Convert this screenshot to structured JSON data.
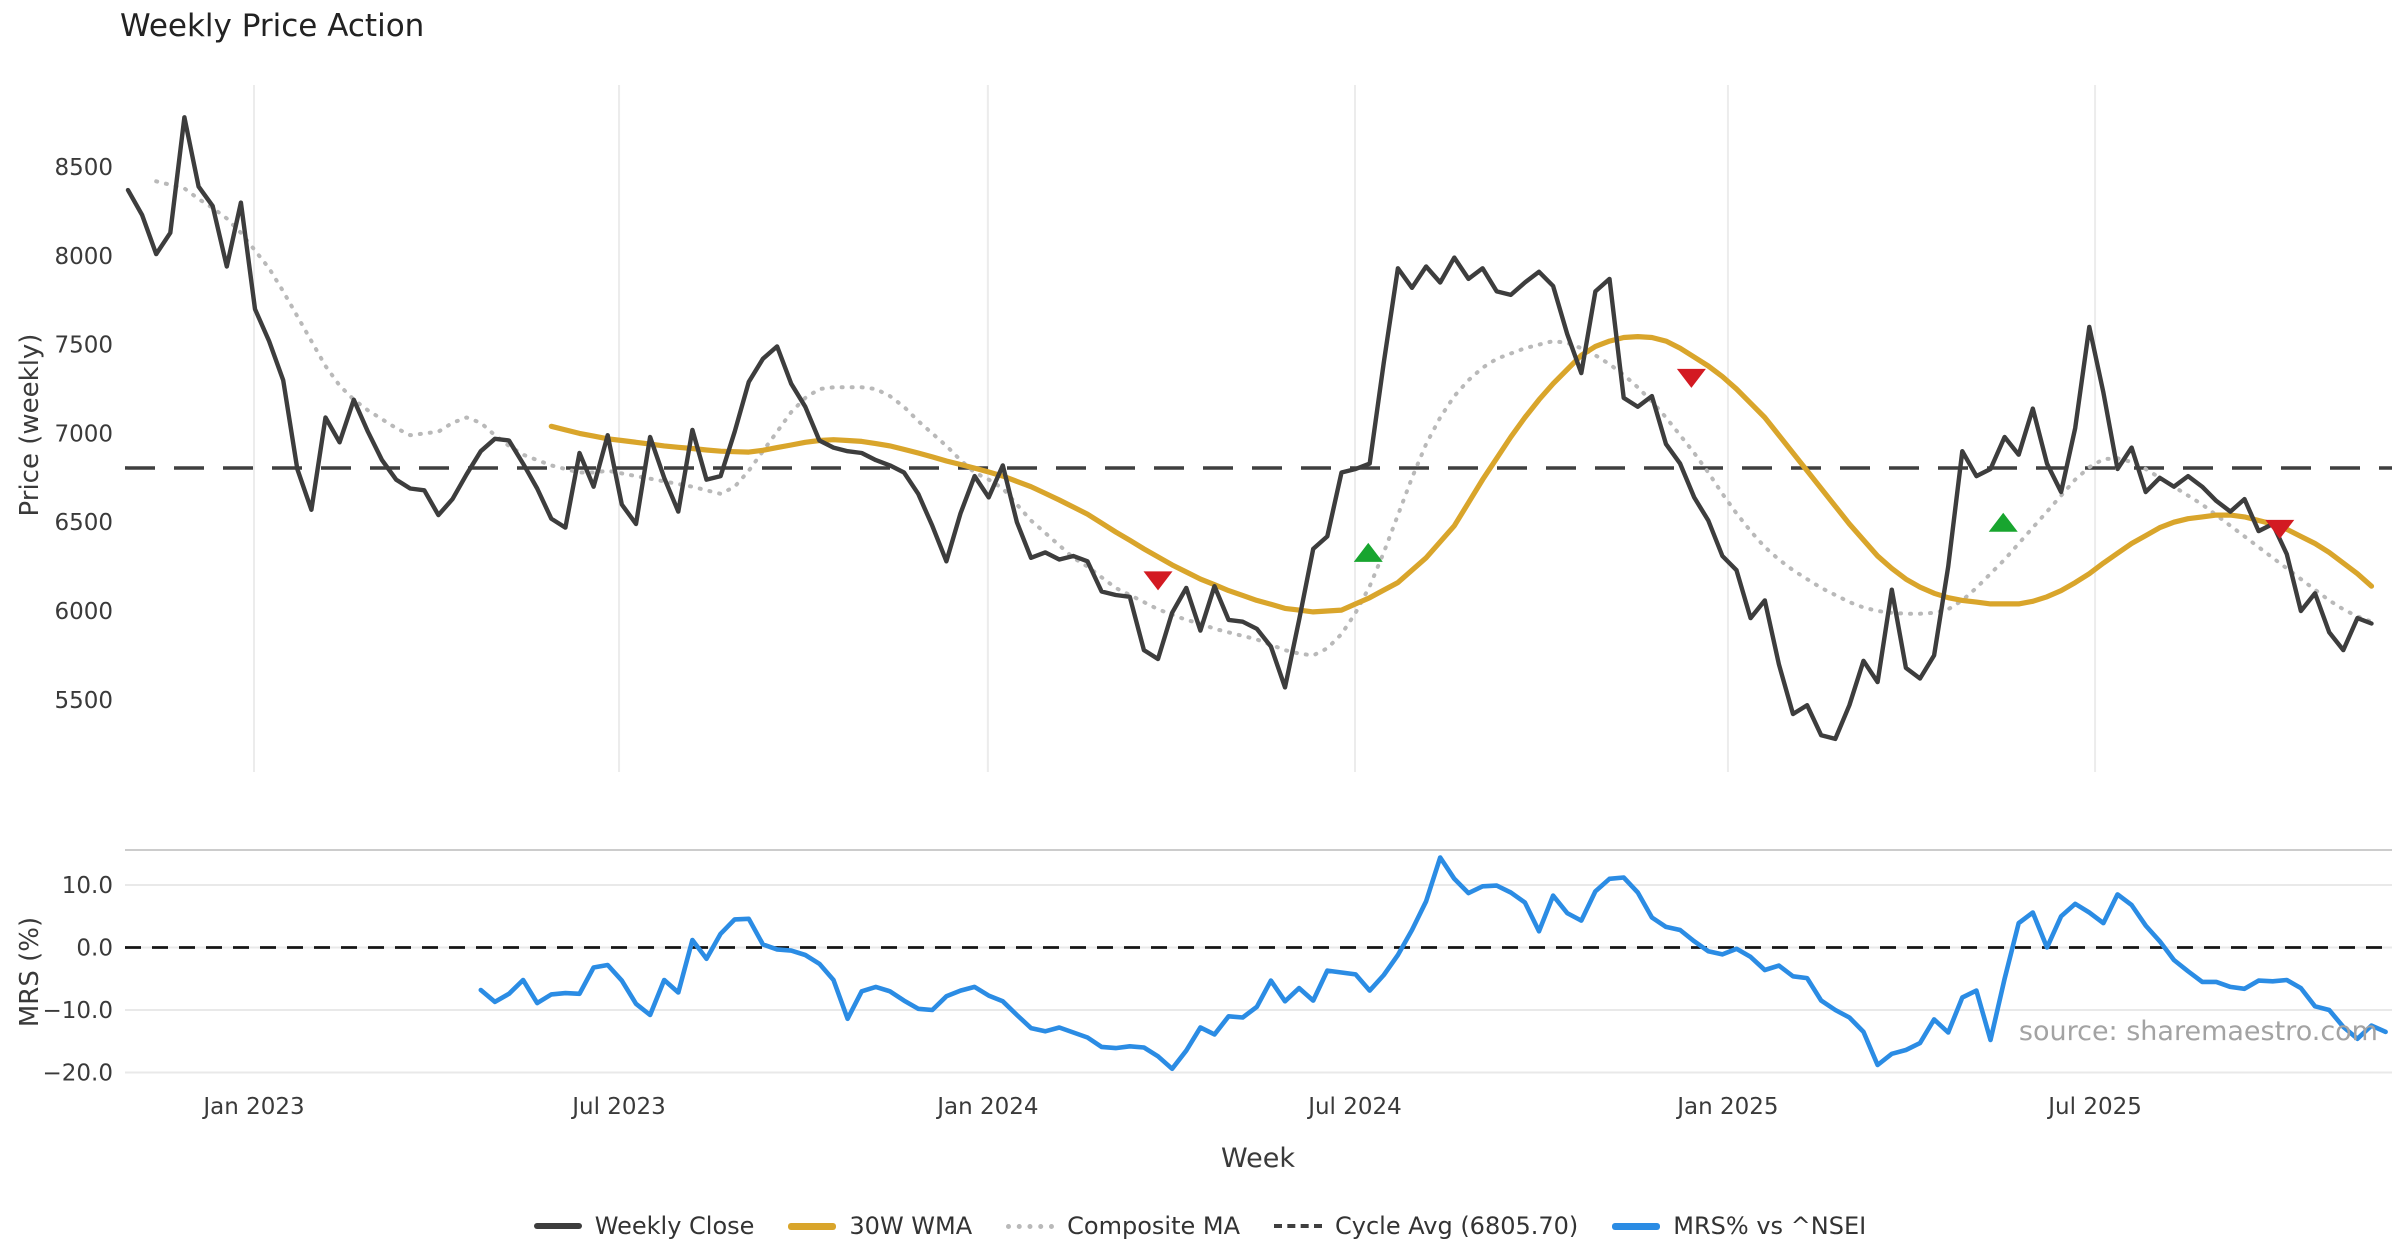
{
  "title": "Weekly Price Action",
  "source": "source: sharemaestro.com",
  "x_axis": {
    "label": "Week"
  },
  "top_axis": {
    "label": "Price (weekly)"
  },
  "bottom_axis": {
    "label": "MRS (%)"
  },
  "legend": {
    "items": [
      {
        "label": "Weekly Close",
        "swatch": "solid-dark-line"
      },
      {
        "label": "30W WMA",
        "swatch": "solid-gold-line"
      },
      {
        "label": "Composite MA",
        "swatch": "dotted-gray-line"
      },
      {
        "label": "Cycle Avg (6805.70)",
        "swatch": "dashed-dark-line"
      },
      {
        "label": "MRS% vs ^NSEI",
        "swatch": "solid-blue-line"
      }
    ]
  },
  "chart_data": {
    "type": "line",
    "title": "Weekly Price Action",
    "xlabel": "Week",
    "x_unit": "week_index_from_2022-11",
    "grid": "vertical-top-panel, horizontal-bottom-panel",
    "legend_position": "lower center",
    "x_ticks": [
      {
        "label": "Jan 2023",
        "week": 8.93
      },
      {
        "label": "Jul 2023",
        "week": 34.8
      },
      {
        "label": "Jan 2024",
        "week": 60.94
      },
      {
        "label": "Jul 2024",
        "week": 86.96
      },
      {
        "label": "Jan 2025",
        "week": 113.39
      },
      {
        "label": "Jul 2025",
        "week": 139.41
      }
    ],
    "colors": {
      "weekly_close": "#3d3d3d",
      "wma30": "#d9a52b",
      "composite": "#b9b9b9",
      "cycle_avg": "#3f3f3f",
      "mrs": "#2b8ce4",
      "buy": "#18a52f",
      "sell": "#d31a22",
      "grid": "#ececec",
      "spine": "#cccccc"
    },
    "top_panel": {
      "ylabel": "Price (weekly)",
      "ylim": [
        5133,
        8962
      ],
      "yticks": [
        8500,
        8000,
        7500,
        7000,
        6500,
        6000,
        5500
      ],
      "cycle_avg": 6805.7,
      "series": [
        {
          "name": "Weekly Close",
          "style": "solid",
          "start_week": 0,
          "values": [
            8370,
            8230,
            8010,
            8130,
            8780,
            8390,
            8280,
            7940,
            8300,
            7700,
            7520,
            7300,
            6800,
            6570,
            7090,
            6950,
            7190,
            7010,
            6850,
            6740,
            6690,
            6680,
            6540,
            6630,
            6770,
            6900,
            6970,
            6960,
            6830,
            6690,
            6520,
            6470,
            6890,
            6700,
            6990,
            6600,
            6490,
            6980,
            6750,
            6560,
            7020,
            6740,
            6760,
            7010,
            7290,
            7420,
            7490,
            7280,
            7150,
            6960,
            6920,
            6900,
            6890,
            6850,
            6820,
            6780,
            6660,
            6480,
            6280,
            6550,
            6760,
            6640,
            6820,
            6500,
            6300,
            6330,
            6290,
            6310,
            6280,
            6110,
            6090,
            6080,
            5780,
            5730,
            5990,
            6130,
            5890,
            6140,
            5950,
            5940,
            5900,
            5800,
            5570,
            5950,
            6350,
            6420,
            6780,
            6800,
            6830,
            7400,
            7930,
            7820,
            7940,
            7850,
            7990,
            7870,
            7930,
            7800,
            7780,
            7850,
            7910,
            7830,
            7560,
            7340,
            7800,
            7870,
            7200,
            7150,
            7210,
            6940,
            6830,
            6640,
            6510,
            6310,
            6230,
            5960,
            6060,
            5700,
            5420,
            5470,
            5300,
            5280,
            5470,
            5720,
            5600,
            6120,
            5680,
            5620,
            5750,
            6250,
            6900,
            6760,
            6800,
            6980,
            6880,
            7140,
            6830,
            6670,
            7030,
            7600,
            7230,
            6800,
            6920,
            6670,
            6750,
            6700,
            6760,
            6700,
            6620,
            6560,
            6630,
            6450,
            6490,
            6320,
            6000,
            6100,
            5880,
            5780,
            5960,
            5930
          ]
        },
        {
          "name": "30W WMA",
          "style": "solid",
          "start_week": 30,
          "values": [
            7040,
            7020,
            7000,
            6985,
            6970,
            6960,
            6950,
            6940,
            6930,
            6922,
            6915,
            6907,
            6900,
            6897,
            6895,
            6905,
            6920,
            6935,
            6950,
            6960,
            6965,
            6960,
            6955,
            6943,
            6930,
            6910,
            6890,
            6868,
            6845,
            6825,
            6805,
            6783,
            6760,
            6730,
            6700,
            6663,
            6625,
            6585,
            6545,
            6495,
            6445,
            6398,
            6350,
            6305,
            6260,
            6220,
            6180,
            6148,
            6115,
            6088,
            6060,
            6038,
            6015,
            6005,
            5995,
            6000,
            6005,
            6040,
            6075,
            6118,
            6160,
            6230,
            6300,
            6390,
            6480,
            6610,
            6740,
            6860,
            6980,
            7090,
            7190,
            7280,
            7360,
            7440,
            7490,
            7520,
            7540,
            7545,
            7540,
            7520,
            7480,
            7430,
            7380,
            7320,
            7250,
            7170,
            7090,
            6990,
            6890,
            6790,
            6690,
            6590,
            6490,
            6400,
            6310,
            6240,
            6180,
            6135,
            6100,
            6075,
            6060,
            6050,
            6040,
            6040,
            6040,
            6055,
            6080,
            6115,
            6160,
            6210,
            6270,
            6325,
            6380,
            6425,
            6470,
            6500,
            6520,
            6530,
            6540,
            6540,
            6530,
            6510,
            6490,
            6460,
            6420,
            6380,
            6330,
            6270,
            6210,
            6140
          ]
        },
        {
          "name": "Composite MA",
          "style": "dotted",
          "start_week": 2,
          "values": [
            8420,
            8400,
            8380,
            8320,
            8270,
            8210,
            8130,
            8030,
            7930,
            7800,
            7660,
            7520,
            7380,
            7270,
            7190,
            7130,
            7080,
            7030,
            6990,
            7000,
            7010,
            7060,
            7090,
            7060,
            6990,
            6930,
            6880,
            6850,
            6820,
            6800,
            6780,
            6780,
            6790,
            6775,
            6760,
            6745,
            6730,
            6715,
            6700,
            6680,
            6660,
            6700,
            6790,
            6900,
            7010,
            7120,
            7200,
            7250,
            7260,
            7260,
            7260,
            7250,
            7210,
            7150,
            7070,
            7000,
            6930,
            6850,
            6780,
            6740,
            6690,
            6600,
            6510,
            6440,
            6370,
            6300,
            6250,
            6190,
            6130,
            6090,
            6050,
            6010,
            5980,
            5950,
            5930,
            5900,
            5880,
            5860,
            5840,
            5810,
            5780,
            5760,
            5750,
            5790,
            5870,
            5990,
            6140,
            6330,
            6540,
            6750,
            6940,
            7090,
            7210,
            7300,
            7370,
            7420,
            7450,
            7480,
            7500,
            7520,
            7510,
            7480,
            7440,
            7390,
            7330,
            7260,
            7180,
            7090,
            6990,
            6890,
            6780,
            6660,
            6550,
            6450,
            6360,
            6290,
            6230,
            6180,
            6130,
            6090,
            6050,
            6020,
            6000,
            5990,
            5985,
            5985,
            5990,
            6010,
            6060,
            6130,
            6210,
            6290,
            6380,
            6470,
            6560,
            6650,
            6740,
            6810,
            6855,
            6860,
            6840,
            6800,
            6750,
            6700,
            6650,
            6600,
            6540,
            6480,
            6420,
            6360,
            6300,
            6240,
            6180,
            6120,
            6060,
            6010,
            5970,
            5940
          ]
        }
      ],
      "buy_markers": [
        {
          "week": 87.9,
          "value": 6330
        },
        {
          "week": 132.9,
          "value": 6500
        }
      ],
      "sell_markers": [
        {
          "week": 73.0,
          "value": 6170
        },
        {
          "week": 110.8,
          "value": 7310
        },
        {
          "week": 152.5,
          "value": 6460
        }
      ]
    },
    "bottom_panel": {
      "ylabel": "MRS (%)",
      "ylim": [
        -22.8,
        15.6
      ],
      "yticks": [
        {
          "label": "10.0",
          "value": 10
        },
        {
          "label": "0.0",
          "value": 0
        },
        {
          "label": "−10.0",
          "value": -10
        },
        {
          "label": "−20.0",
          "value": -20
        }
      ],
      "zero_line": 0,
      "series": [
        {
          "name": "MRS% vs ^NSEI",
          "style": "solid",
          "start_week": 25,
          "values": [
            -6.8,
            -8.7,
            -7.4,
            -5.2,
            -8.9,
            -7.5,
            -7.3,
            -7.4,
            -3.2,
            -2.8,
            -5.3,
            -9.0,
            -10.8,
            -5.2,
            -7.2,
            1.2,
            -1.8,
            2.2,
            4.5,
            4.6,
            0.5,
            -0.3,
            -0.5,
            -1.2,
            -2.6,
            -5.2,
            -11.4,
            -7.0,
            -6.3,
            -7.0,
            -8.5,
            -9.8,
            -10.0,
            -7.8,
            -6.9,
            -6.3,
            -7.7,
            -8.6,
            -10.8,
            -12.9,
            -13.4,
            -12.8,
            -13.6,
            -14.4,
            -15.9,
            -16.1,
            -15.8,
            -16.0,
            -17.4,
            -19.4,
            -16.5,
            -12.8,
            -13.9,
            -11.0,
            -11.2,
            -9.5,
            -5.3,
            -8.6,
            -6.5,
            -8.5,
            -3.7,
            -4.0,
            -4.3,
            -6.9,
            -4.4,
            -1.2,
            2.8,
            7.4,
            14.4,
            11.0,
            8.7,
            9.8,
            9.9,
            8.8,
            7.2,
            2.6,
            8.3,
            5.5,
            4.3,
            9.0,
            11.0,
            11.2,
            8.8,
            4.8,
            3.3,
            2.8,
            1.0,
            -0.6,
            -1.1,
            -0.2,
            -1.5,
            -3.6,
            -2.9,
            -4.6,
            -4.9,
            -8.5,
            -10.0,
            -11.2,
            -13.5,
            -18.8,
            -17.0,
            -16.4,
            -15.3,
            -11.5,
            -13.6,
            -8.0,
            -6.9,
            -14.8,
            -5.0,
            3.9,
            5.6,
            0.0,
            5.0,
            7.0,
            5.6,
            3.9,
            8.5,
            6.8,
            3.5,
            1.0,
            -2.0,
            -3.8,
            -5.5,
            -5.5,
            -6.3,
            -6.6,
            -5.3,
            -5.4,
            -5.2,
            -6.5,
            -9.4,
            -10.0,
            -12.7,
            -14.6,
            -12.5,
            -13.5
          ]
        }
      ]
    }
  }
}
